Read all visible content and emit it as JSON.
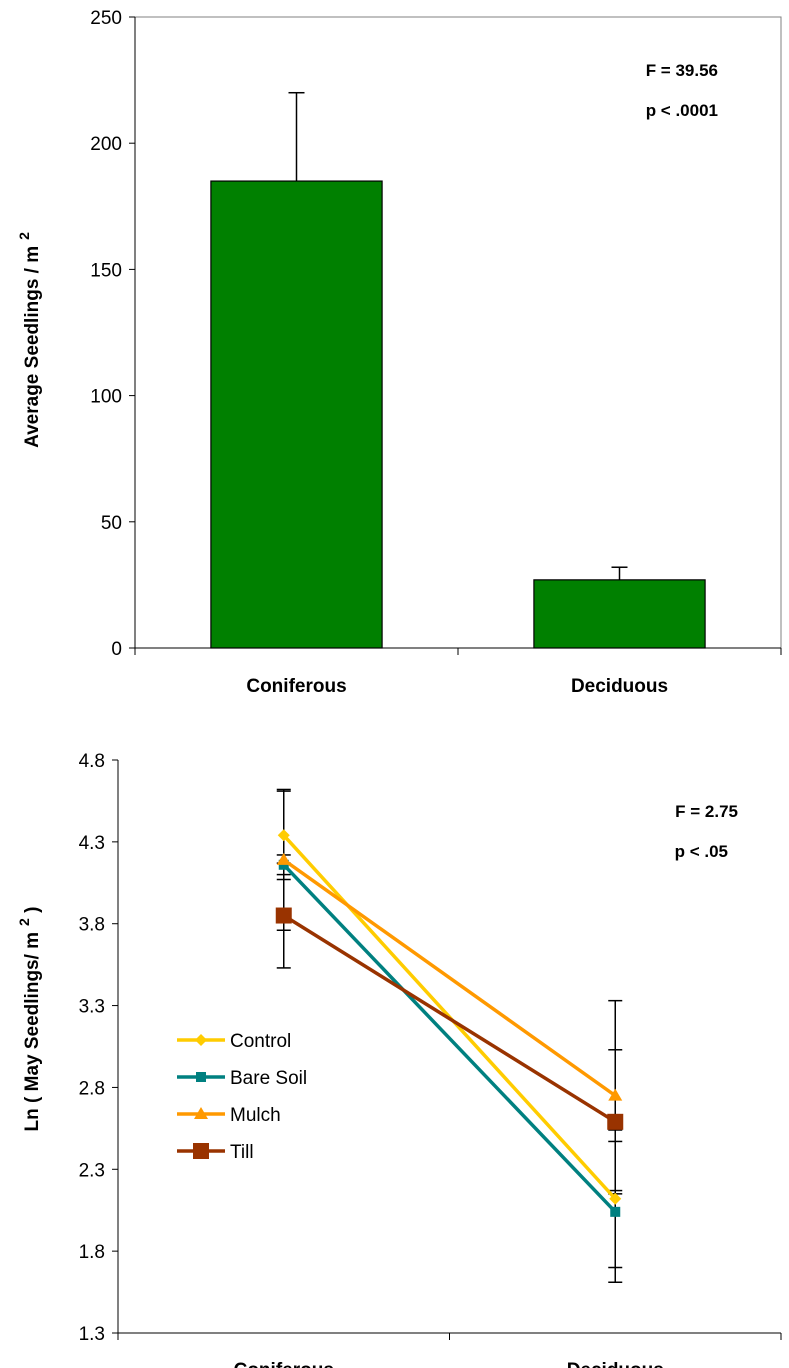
{
  "chart_data": [
    {
      "type": "bar",
      "categories": [
        "Coniferous",
        "Deciduous"
      ],
      "values": [
        185,
        27
      ],
      "errors": [
        35,
        5
      ],
      "bar_color": "#008000",
      "ylabel": "Average Seedlings / m",
      "ylabel_sup": "2",
      "ylim": [
        0,
        250
      ],
      "yticks": [
        "0",
        "50",
        "100",
        "150",
        "200",
        "250"
      ],
      "annotations": [
        "F = 39.56",
        "p < .0001"
      ],
      "grid": false
    },
    {
      "type": "line",
      "categories": [
        "Coniferous",
        "Deciduous"
      ],
      "ylabel": "Ln ( May Seedlings/ m",
      "ylabel_sup": "2",
      "ylabel_close": " )",
      "ylim": [
        1.3,
        4.8
      ],
      "yticks": [
        "1.3",
        "1.8",
        "2.3",
        "2.8",
        "3.3",
        "3.8",
        "4.3",
        "4.8"
      ],
      "annotations": [
        "F = 2.75",
        "p < .05"
      ],
      "grid": false,
      "legend_position": "bottom-left",
      "series": [
        {
          "name": "Control",
          "values": [
            4.34,
            2.12
          ],
          "errors": [
            0.27,
            0.42
          ],
          "color": "#FFCC00",
          "marker": "diamond"
        },
        {
          "name": "Bare Soil",
          "values": [
            4.16,
            2.04
          ],
          "errors": [
            0.06,
            0.43
          ],
          "color": "#008080",
          "marker": "square"
        },
        {
          "name": "Mulch",
          "values": [
            4.19,
            2.75
          ],
          "errors": [
            0.43,
            0.58
          ],
          "color": "#FF9900",
          "marker": "triangle"
        },
        {
          "name": "Till",
          "values": [
            3.85,
            2.59
          ],
          "errors": [
            0.32,
            0.44
          ],
          "color": "#993300",
          "marker": "bigsquare"
        }
      ]
    }
  ]
}
